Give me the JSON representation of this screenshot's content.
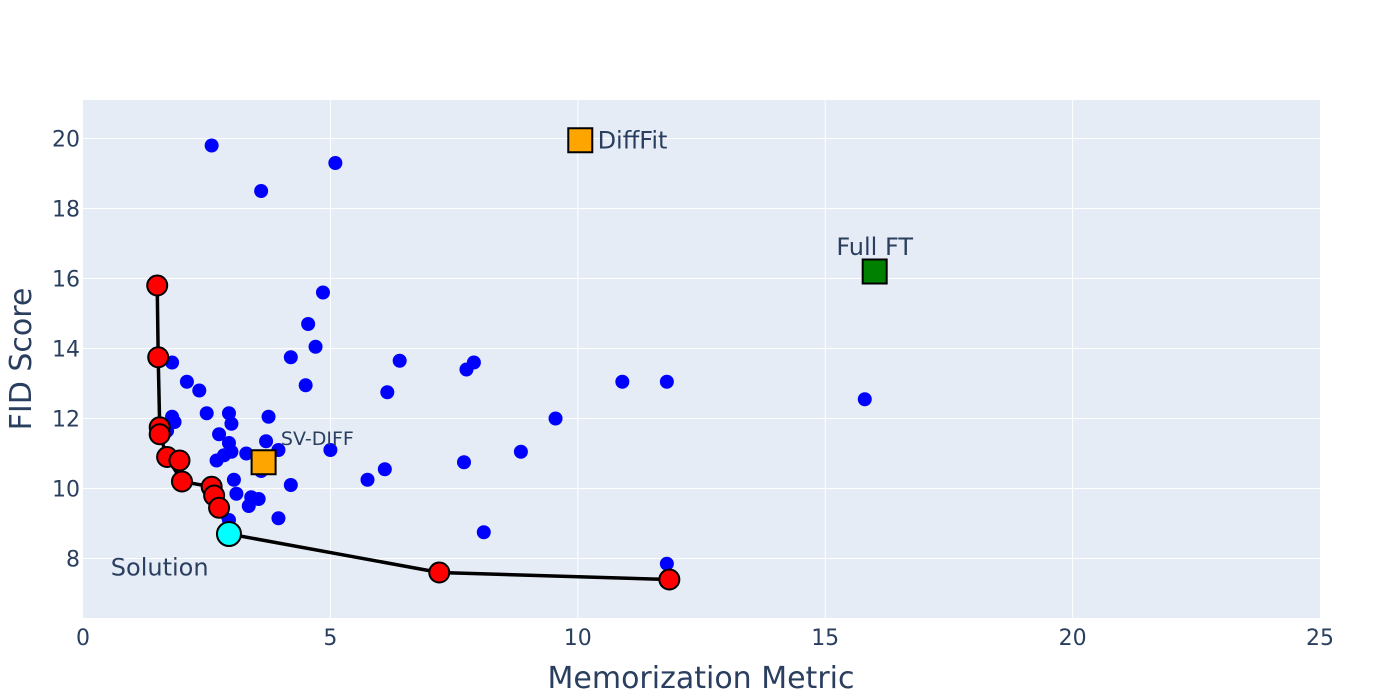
{
  "chart_data": {
    "type": "scatter",
    "title": "",
    "xlabel": "Memorization Metric",
    "ylabel": "FID Score",
    "xlim": [
      0,
      25
    ],
    "ylim": [
      6.3,
      21.1
    ],
    "xticks": [
      0,
      5,
      10,
      15,
      20,
      25
    ],
    "yticks": [
      8,
      10,
      12,
      14,
      16,
      18,
      20
    ],
    "grid": true,
    "legend": "none",
    "colors": {
      "background": "#e5ecf6",
      "grid": "#ffffff",
      "candidate": "#0000ff",
      "frontier": "#ff0000",
      "solution": "#00ffff",
      "baseline_orange": "#ffa500",
      "baseline_green": "#008000",
      "line": "#000000"
    },
    "series": [
      {
        "role": "candidates",
        "points": [
          [
            2.6,
            19.8
          ],
          [
            5.1,
            19.3
          ],
          [
            3.6,
            18.5
          ],
          [
            4.85,
            15.6
          ],
          [
            4.55,
            14.7
          ],
          [
            4.7,
            14.05
          ],
          [
            4.2,
            13.75
          ],
          [
            6.4,
            13.65
          ],
          [
            7.9,
            13.6
          ],
          [
            7.75,
            13.4
          ],
          [
            1.8,
            13.6
          ],
          [
            2.1,
            13.05
          ],
          [
            2.35,
            12.8
          ],
          [
            4.5,
            12.95
          ],
          [
            6.15,
            12.75
          ],
          [
            10.9,
            13.05
          ],
          [
            11.8,
            13.05
          ],
          [
            15.8,
            12.55
          ],
          [
            9.55,
            12.0
          ],
          [
            2.5,
            12.15
          ],
          [
            2.95,
            12.15
          ],
          [
            3.75,
            12.05
          ],
          [
            1.8,
            12.05
          ],
          [
            1.85,
            11.9
          ],
          [
            3.0,
            11.85
          ],
          [
            1.7,
            11.65
          ],
          [
            2.75,
            11.55
          ],
          [
            3.7,
            11.35
          ],
          [
            2.95,
            11.3
          ],
          [
            3.95,
            11.1
          ],
          [
            5.0,
            11.1
          ],
          [
            8.85,
            11.05
          ],
          [
            3.0,
            11.05
          ],
          [
            2.85,
            10.95
          ],
          [
            3.3,
            11.0
          ],
          [
            2.7,
            10.8
          ],
          [
            7.7,
            10.75
          ],
          [
            6.1,
            10.55
          ],
          [
            3.6,
            10.5
          ],
          [
            5.75,
            10.25
          ],
          [
            3.05,
            10.25
          ],
          [
            4.2,
            10.1
          ],
          [
            3.1,
            9.85
          ],
          [
            3.4,
            9.75
          ],
          [
            3.55,
            9.7
          ],
          [
            3.35,
            9.5
          ],
          [
            3.95,
            9.15
          ],
          [
            2.95,
            9.1
          ],
          [
            8.1,
            8.75
          ],
          [
            11.8,
            7.85
          ]
        ]
      },
      {
        "role": "pareto-frontier",
        "points": [
          [
            1.5,
            15.8
          ],
          [
            1.52,
            13.75
          ],
          [
            1.55,
            11.75
          ],
          [
            1.55,
            11.55
          ],
          [
            1.7,
            10.9
          ],
          [
            1.95,
            10.8
          ],
          [
            2.0,
            10.2
          ],
          [
            2.6,
            10.05
          ],
          [
            2.65,
            9.8
          ],
          [
            2.75,
            9.45
          ],
          [
            7.2,
            7.6
          ],
          [
            11.85,
            7.4
          ]
        ],
        "line": [
          [
            1.5,
            15.8
          ],
          [
            1.52,
            13.75
          ],
          [
            1.55,
            11.75
          ],
          [
            1.55,
            11.55
          ],
          [
            1.7,
            10.9
          ],
          [
            2.0,
            10.2
          ],
          [
            2.6,
            10.05
          ],
          [
            2.65,
            9.8
          ],
          [
            2.75,
            9.45
          ],
          [
            2.95,
            8.7
          ],
          [
            7.2,
            7.6
          ],
          [
            11.85,
            7.4
          ]
        ]
      },
      {
        "role": "solution",
        "points": [
          [
            2.95,
            8.7
          ]
        ]
      }
    ],
    "baselines": [
      {
        "name": "DiffFit",
        "x": 10.05,
        "y": 19.95,
        "color": "#ffa500"
      },
      {
        "name": "SV-DIFF",
        "x": 3.65,
        "y": 10.75,
        "color": "#ffa500"
      },
      {
        "name": "Full FT",
        "x": 16.0,
        "y": 16.2,
        "color": "#008000"
      }
    ],
    "annotations": [
      {
        "text": "DiffFit",
        "x": 10.4,
        "y": 19.95,
        "anchor": "start",
        "size": "normal"
      },
      {
        "text": "SV-DIFF",
        "x": 4.0,
        "y": 11.45,
        "anchor": "start",
        "size": "small"
      },
      {
        "text": "Full FT",
        "x": 16.0,
        "y": 16.9,
        "anchor": "middle",
        "size": "normal"
      },
      {
        "text": "Solution",
        "x": 1.55,
        "y": 7.75,
        "anchor": "middle",
        "size": "normal"
      }
    ]
  }
}
